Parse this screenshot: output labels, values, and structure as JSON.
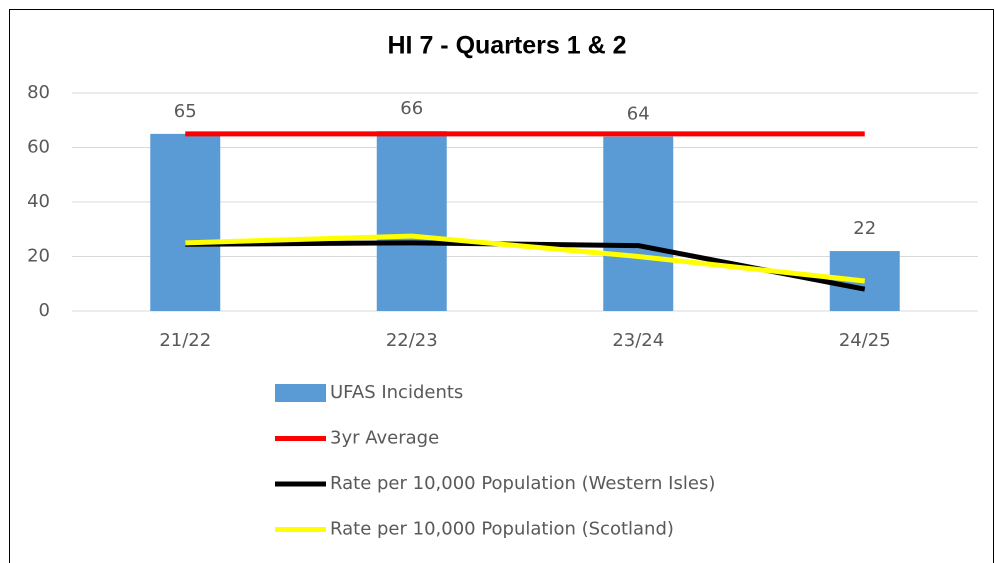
{
  "chart_data": {
    "type": "bar",
    "title": "HI 7 - Quarters 1 & 2",
    "categories": [
      "21/22",
      "22/23",
      "23/24",
      "24/25"
    ],
    "series": [
      {
        "name": "UFAS Incidents",
        "type": "bar",
        "color": "#5b9bd5",
        "values": [
          65,
          66,
          64,
          22
        ]
      },
      {
        "name": "3yr Average",
        "type": "line",
        "color": "#ff0000",
        "values": [
          65,
          65,
          65,
          65
        ]
      },
      {
        "name": "Rate per 10,000 Population (Western Isles)",
        "type": "line",
        "color": "#000000",
        "values": [
          24.5,
          25,
          24,
          8
        ]
      },
      {
        "name": "Rate per 10,000 Population (Scotland)",
        "type": "line",
        "color": "#ffff00",
        "values": [
          25,
          27.5,
          20,
          11
        ]
      }
    ],
    "ylim": [
      0,
      80
    ],
    "yticks": [
      0,
      20,
      40,
      60,
      80
    ],
    "grid": true,
    "legend": "bottom"
  }
}
